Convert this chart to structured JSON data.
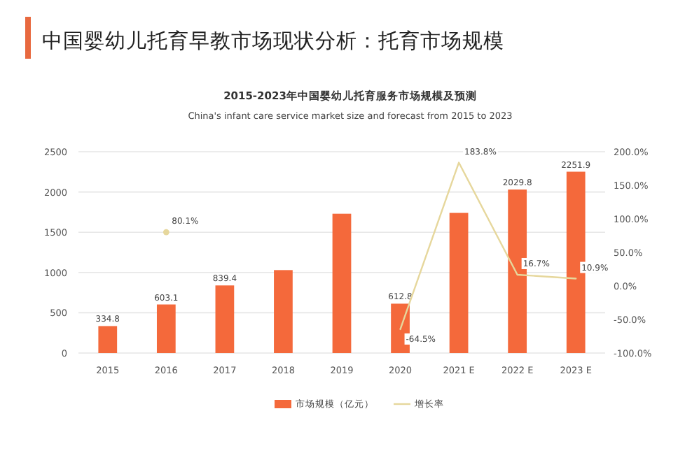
{
  "chart_data": {
    "type": "bar",
    "title": "中国婴幼儿托育早教市场现状分析：托育市场规模",
    "subtitle": "2015-2023年中国婴幼儿托育服务市场规模及预测",
    "annotations": [
      "China's infant care service market size and forecast from 2015 to 2023"
    ],
    "categories": [
      "2015",
      "2016",
      "2017",
      "2018",
      "2019",
      "2020",
      "2021 E",
      "2022 E",
      "2023 E"
    ],
    "series": [
      {
        "name": "市场规模（亿元）",
        "color": "#f4693b",
        "values": [
          334.8,
          603.1,
          839.4,
          1030,
          1730,
          612.8,
          1740,
          2029.8,
          2251.9
        ],
        "value_labels": [
          "334.8",
          "603.1",
          "839.4",
          null,
          null,
          "612.8",
          null,
          "2029.8",
          "2251.9"
        ]
      },
      {
        "name": "增长率",
        "type": "line",
        "axis": "y2",
        "color": "#e6d79c",
        "values": [
          null,
          80.1,
          null,
          null,
          null,
          -64.5,
          183.8,
          16.7,
          10.9
        ],
        "value_labels": [
          null,
          "80.1%",
          null,
          null,
          null,
          "-64.5%",
          "183.8%",
          "16.7%",
          "10.9%"
        ]
      }
    ],
    "ylim": [
      0,
      2500
    ],
    "yticks": [
      0,
      500,
      1000,
      1500,
      2000,
      2500
    ],
    "y2lim": [
      -100,
      200
    ],
    "y2ticks": [
      {
        "value": -100,
        "label": "-100.0%"
      },
      {
        "value": -50,
        "label": "-50.0%"
      },
      {
        "value": 0,
        "label": "0.0%"
      },
      {
        "value": 50,
        "label": "50.0%"
      },
      {
        "value": 100,
        "label": "100.0%"
      },
      {
        "value": 150,
        "label": "150.0%"
      },
      {
        "value": 200,
        "label": "200.0%"
      }
    ],
    "grid": "y",
    "legend": "bottom"
  }
}
